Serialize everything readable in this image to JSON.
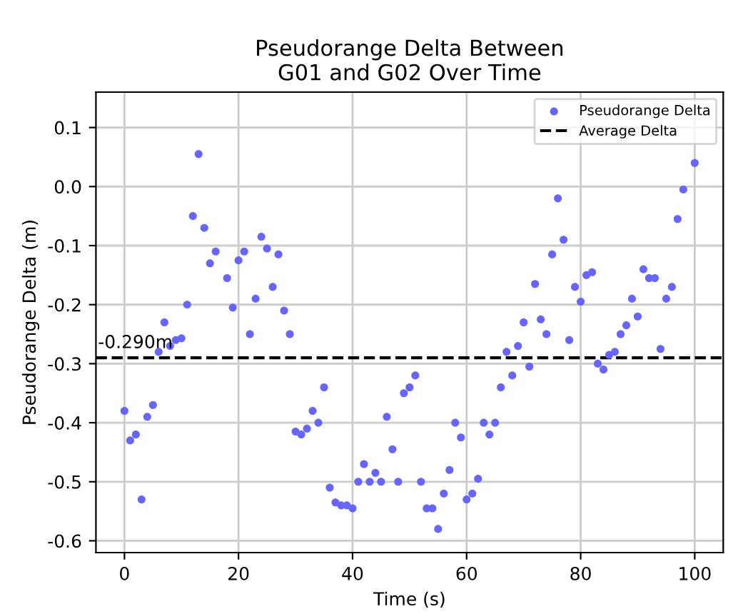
{
  "chart_data": {
    "type": "scatter",
    "title": "Pseudorange Delta Between\nG01 and G02 Over Time",
    "xlabel": "Time (s)",
    "ylabel": "Pseudorange Delta (m)",
    "x": [
      0,
      1,
      2,
      3,
      4,
      5,
      6,
      7,
      8,
      9,
      10,
      11,
      12,
      13,
      14,
      15,
      16,
      18,
      19,
      20,
      21,
      22,
      23,
      24,
      25,
      26,
      27,
      28,
      29,
      30,
      31,
      32,
      33,
      34,
      35,
      36,
      37,
      38,
      39,
      40,
      41,
      42,
      43,
      44,
      45,
      46,
      47,
      48,
      49,
      50,
      51,
      52,
      53,
      54,
      55,
      56,
      57,
      58,
      59,
      60,
      61,
      62,
      63,
      64,
      65,
      66,
      67,
      68,
      69,
      70,
      71,
      72,
      73,
      74,
      75,
      76,
      77,
      78,
      79,
      80,
      81,
      82,
      83,
      84,
      85,
      86,
      87,
      88,
      89,
      90,
      91,
      92,
      93,
      94,
      95,
      96,
      97,
      98,
      100
    ],
    "series": [
      {
        "name": "Pseudorange Delta",
        "color": "#6666ff",
        "marker": "circle",
        "values": [
          -0.38,
          -0.43,
          -0.42,
          -0.53,
          -0.39,
          -0.37,
          -0.28,
          -0.23,
          -0.27,
          -0.26,
          -0.257,
          -0.2,
          -0.05,
          0.055,
          -0.07,
          -0.13,
          -0.11,
          -0.155,
          -0.205,
          -0.125,
          -0.11,
          -0.25,
          -0.19,
          -0.085,
          -0.105,
          -0.17,
          -0.115,
          -0.21,
          -0.25,
          -0.415,
          -0.42,
          -0.41,
          -0.38,
          -0.4,
          -0.34,
          -0.51,
          -0.535,
          -0.54,
          -0.54,
          -0.545,
          -0.5,
          -0.47,
          -0.5,
          -0.485,
          -0.5,
          -0.39,
          -0.445,
          -0.5,
          -0.35,
          -0.34,
          -0.32,
          -0.5,
          -0.545,
          -0.545,
          -0.58,
          -0.52,
          -0.48,
          -0.4,
          -0.425,
          -0.53,
          -0.52,
          -0.495,
          -0.4,
          -0.42,
          -0.4,
          -0.34,
          -0.28,
          -0.32,
          -0.27,
          -0.23,
          -0.305,
          -0.165,
          -0.225,
          -0.25,
          -0.115,
          -0.02,
          -0.09,
          -0.26,
          -0.17,
          -0.195,
          -0.15,
          -0.145,
          -0.3,
          -0.31,
          -0.285,
          -0.28,
          -0.25,
          -0.235,
          -0.19,
          -0.22,
          -0.14,
          -0.155,
          -0.155,
          -0.275,
          -0.19,
          -0.17,
          -0.055,
          -0.005,
          0.04
        ]
      },
      {
        "type": "line",
        "name": "Average Delta",
        "color": "#000000",
        "line_style": "dashed",
        "marker": "none",
        "x": [
          -5,
          105
        ],
        "values": [
          -0.29,
          -0.29
        ]
      }
    ],
    "annotations": [
      {
        "text": "-0.290m",
        "x": -5,
        "y": -0.29
      }
    ],
    "xlim": [
      -5,
      105
    ],
    "ylim": [
      -0.62,
      0.16
    ],
    "xticks": [
      0,
      20,
      40,
      60,
      80,
      100
    ],
    "yticks": [
      -0.6,
      -0.5,
      -0.4,
      -0.3,
      -0.2,
      -0.1,
      {
        "value": 0,
        "label": "0.0"
      },
      0.1
    ],
    "grid": true,
    "legend": "top right"
  }
}
